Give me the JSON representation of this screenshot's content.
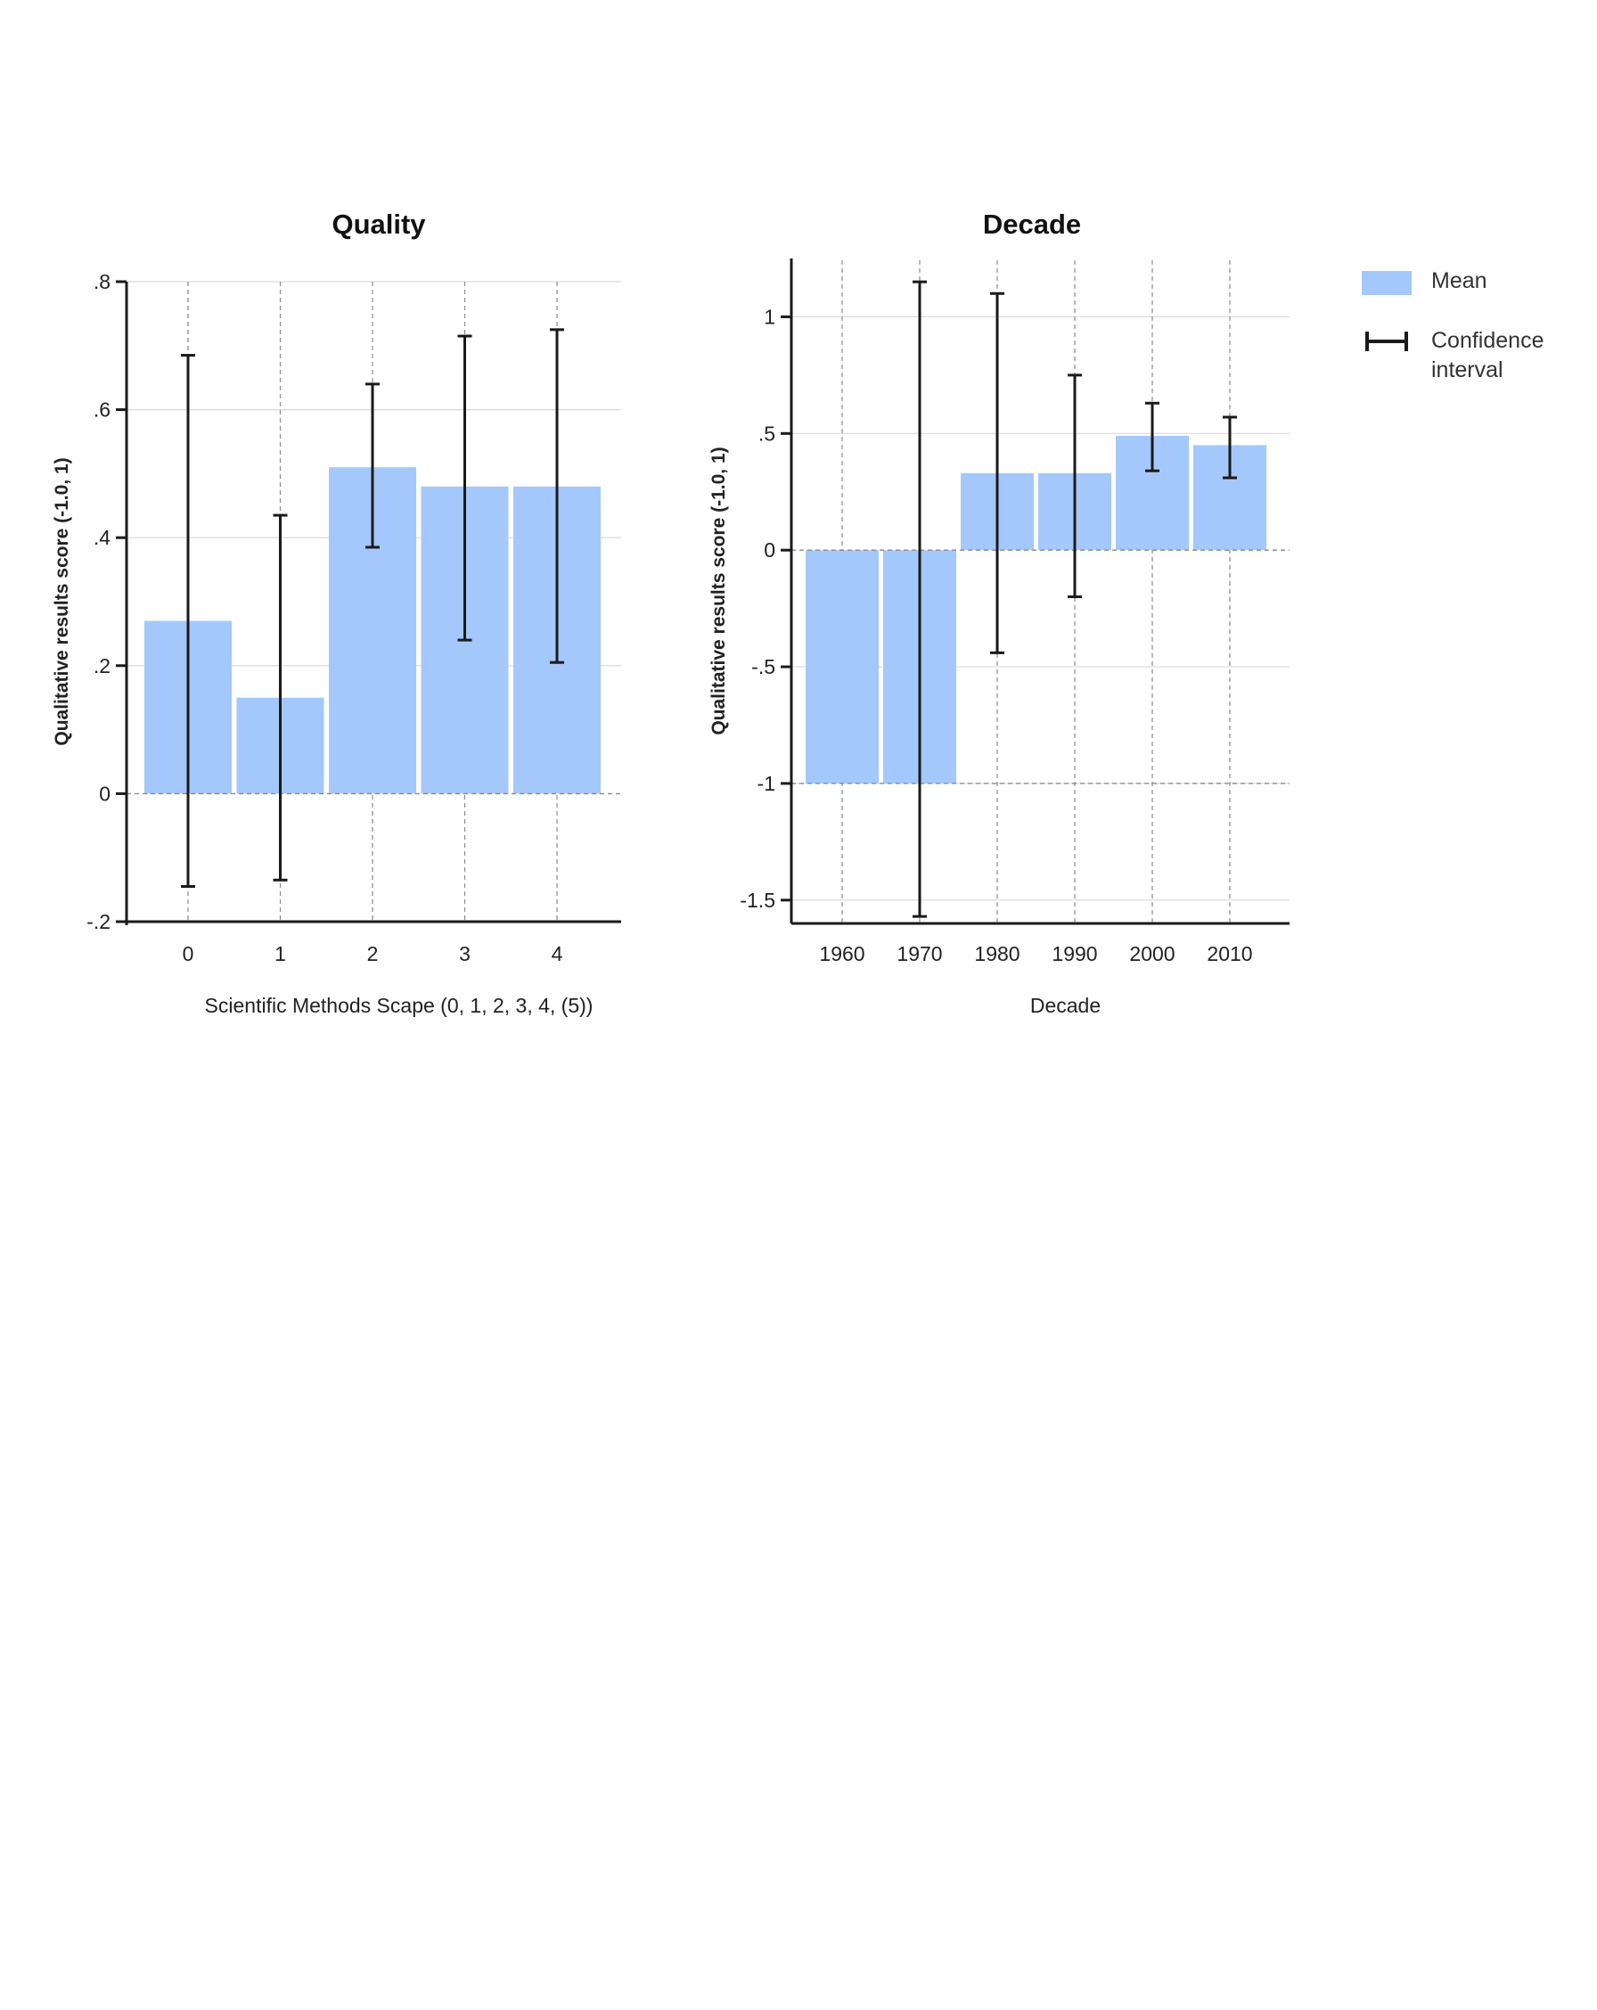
{
  "chart_data": [
    {
      "type": "bar",
      "title": "Quality",
      "xlabel": "Scientific Methods Scape (0, 1, 2, 3, 4, (5))",
      "ylabel": "Qualitative results score (-1.0, 1)",
      "categories": [
        "0",
        "1",
        "2",
        "3",
        "4"
      ],
      "series": [
        {
          "name": "Mean",
          "values": [
            0.27,
            0.15,
            0.51,
            0.48,
            0.48
          ]
        }
      ],
      "ci_low": [
        -0.145,
        -0.135,
        0.385,
        0.24,
        0.205
      ],
      "ci_high": [
        0.685,
        0.435,
        0.64,
        0.715,
        0.725
      ],
      "ylim": [
        -0.2,
        0.8
      ],
      "yticks": [
        -0.2,
        0,
        0.2,
        0.4,
        0.6,
        0.8
      ],
      "ytick_labels": [
        "-.2",
        "0",
        ".2",
        ".4",
        ".6",
        ".8"
      ],
      "grid": true
    },
    {
      "type": "bar",
      "title": "Decade",
      "xlabel": "Decade",
      "ylabel": "Qualitative results score (-1.0, 1)",
      "categories": [
        "1960",
        "1970",
        "1980",
        "1990",
        "2000",
        "2010"
      ],
      "series": [
        {
          "name": "Mean",
          "values": [
            -1.0,
            -1.0,
            0.33,
            0.33,
            0.49,
            0.45
          ]
        }
      ],
      "ci_low": [
        null,
        -1.57,
        -0.44,
        -0.2,
        0.34,
        0.31
      ],
      "ci_high": [
        null,
        1.15,
        1.1,
        0.75,
        0.63,
        0.57
      ],
      "ylim": [
        -1.6,
        1.25
      ],
      "yticks": [
        -1.5,
        -1,
        -0.5,
        0,
        0.5,
        1
      ],
      "ytick_labels": [
        "-1.5",
        "-1",
        "-.5",
        "0",
        ".5",
        "1"
      ],
      "grid": true
    }
  ],
  "legend": {
    "placement": "right",
    "items": [
      {
        "kind": "bar",
        "label": "Mean"
      },
      {
        "kind": "errorbar",
        "label_lines": [
          "Confidence",
          "interval"
        ]
      }
    ]
  },
  "colors": {
    "bar": "#a4c8fb",
    "errorbar": "#1a1a1a",
    "axis": "#1a1a1a",
    "grid": "#d9d9d9",
    "dashed": "#8a8a8a"
  }
}
